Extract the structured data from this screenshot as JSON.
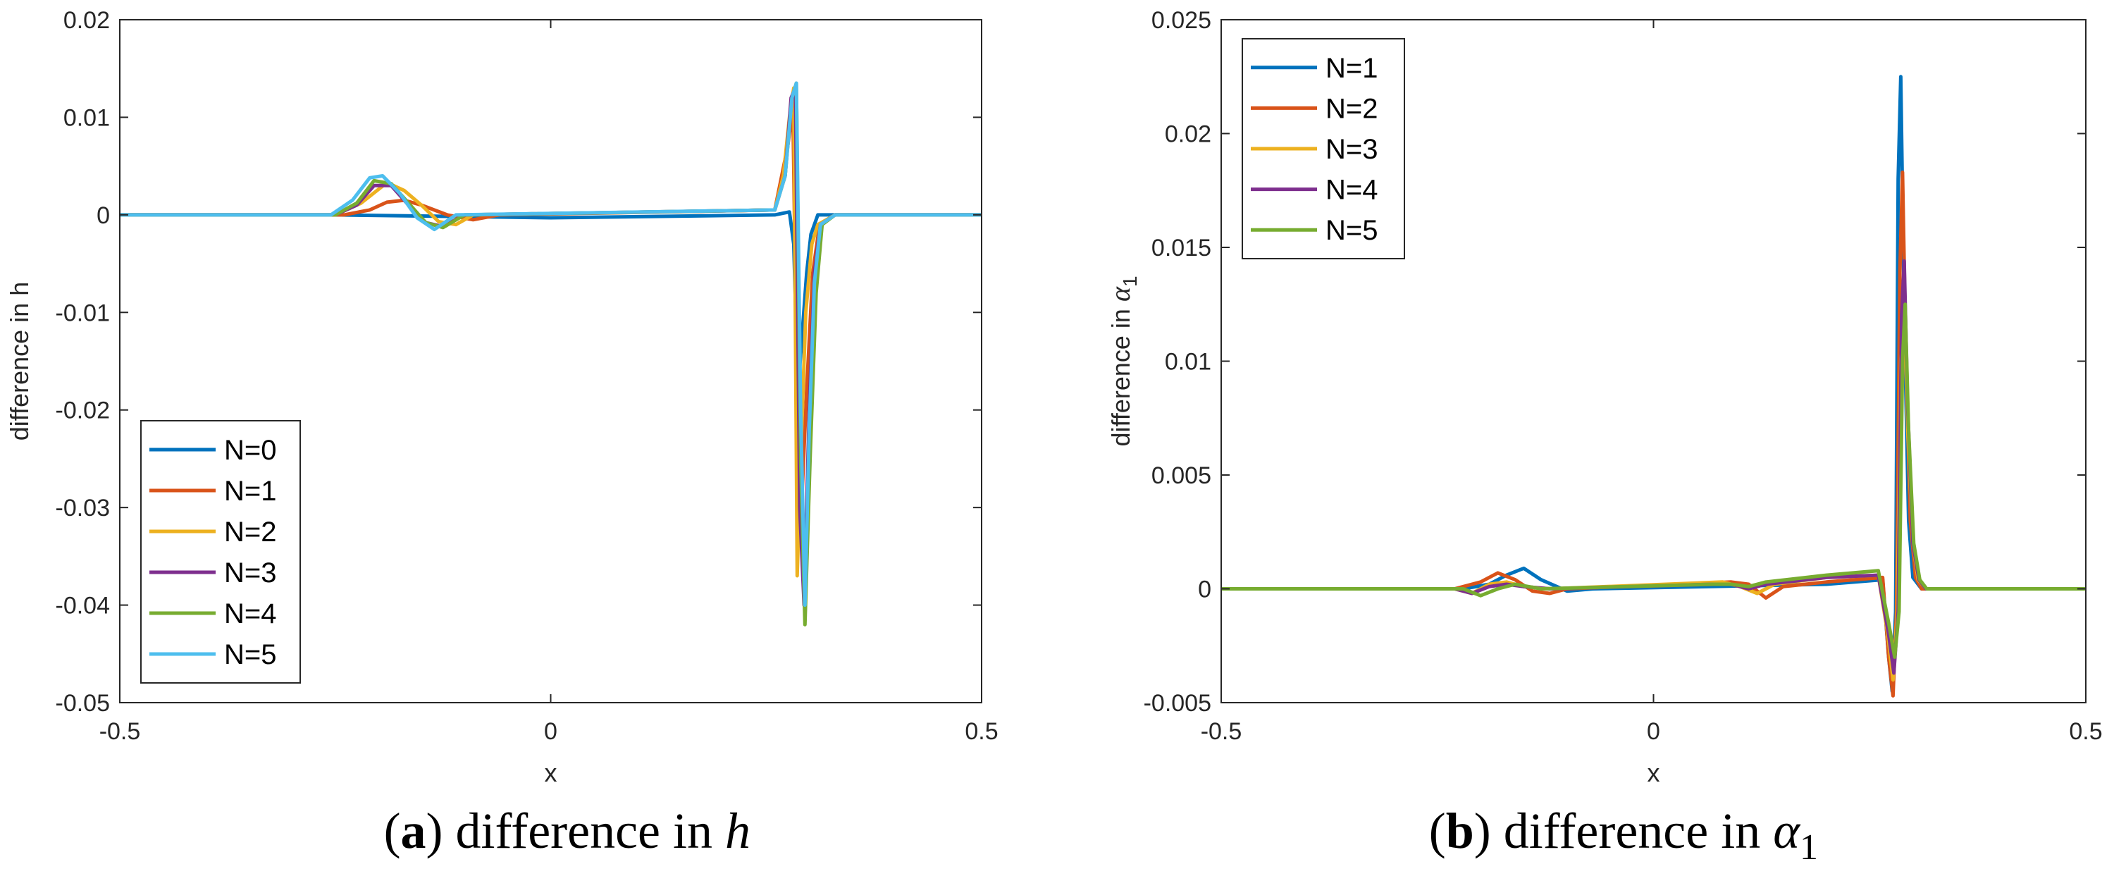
{
  "colors": {
    "N0": "#0072BD",
    "N1": "#D95319",
    "N2": "#EDB120",
    "N3": "#7E2F8E",
    "N4": "#77AC30",
    "N5": "#4DBEEE",
    "axis": "#262626"
  },
  "chart_data": [
    {
      "type": "line",
      "caption": {
        "letter": "a",
        "text": "difference in ",
        "symbol": "h"
      },
      "xlabel": "x",
      "ylabel": "difference in h",
      "xlim": [
        -0.5,
        0.5
      ],
      "ylim": [
        -0.05,
        0.02
      ],
      "xticks": [
        -0.5,
        0,
        0.5
      ],
      "xtick_labels": [
        "-0.5",
        "0",
        "0.5"
      ],
      "yticks": [
        -0.05,
        -0.04,
        -0.03,
        -0.02,
        -0.01,
        0,
        0.01,
        0.02
      ],
      "ytick_labels": [
        "-0.05",
        "-0.04",
        "-0.03",
        "-0.02",
        "-0.01",
        "0",
        "0.01",
        "0.02"
      ],
      "legend_position": "bottom-left",
      "series": [
        {
          "name": "N=0",
          "color_key": "N0",
          "x": [
            -0.5,
            -0.25,
            0.0,
            0.26,
            0.277,
            0.282,
            0.287,
            0.292,
            0.297,
            0.302,
            0.31,
            0.33,
            0.5
          ],
          "y": [
            0,
            0,
            -0.0003,
            0,
            0.0003,
            -0.003,
            -0.018,
            -0.012,
            -0.006,
            -0.002,
            0,
            0,
            0
          ]
        },
        {
          "name": "N=1",
          "color_key": "N1",
          "x": [
            -0.5,
            -0.24,
            -0.21,
            -0.19,
            -0.17,
            -0.15,
            -0.12,
            -0.09,
            -0.06,
            0.26,
            0.275,
            0.281,
            0.286,
            0.291,
            0.297,
            0.304,
            0.312,
            0.33,
            0.5
          ],
          "y": [
            0,
            0,
            0.0005,
            0.0013,
            0.0015,
            0.001,
            0,
            -0.0005,
            0,
            0.0005,
            0.007,
            0.011,
            -0.02,
            -0.03,
            -0.018,
            -0.006,
            -0.001,
            0,
            0
          ]
        },
        {
          "name": "N=2",
          "color_key": "N2",
          "x": [
            -0.5,
            -0.25,
            -0.22,
            -0.19,
            -0.17,
            -0.15,
            -0.13,
            -0.11,
            -0.09,
            0.26,
            0.27,
            0.277,
            0.282,
            0.286,
            0.29,
            0.296,
            0.303,
            0.31,
            0.33,
            0.5
          ],
          "y": [
            0,
            0,
            0.0012,
            0.0033,
            0.0025,
            0.001,
            -0.0007,
            -0.001,
            0,
            0.0005,
            0.004,
            0.01,
            0.013,
            -0.037,
            -0.025,
            -0.01,
            -0.003,
            -0.001,
            0,
            0
          ]
        },
        {
          "name": "N=3",
          "color_key": "N3",
          "x": [
            -0.5,
            -0.25,
            -0.225,
            -0.205,
            -0.185,
            -0.165,
            -0.145,
            -0.125,
            -0.1,
            0.26,
            0.272,
            0.279,
            0.284,
            0.289,
            0.294,
            0.3,
            0.306,
            0.313,
            0.33,
            0.5
          ],
          "y": [
            0,
            0,
            0.001,
            0.003,
            0.003,
            0.001,
            -0.0008,
            -0.0012,
            0,
            0.0005,
            0.004,
            0.012,
            0.013,
            -0.03,
            -0.04,
            -0.02,
            -0.006,
            -0.001,
            0,
            0
          ]
        },
        {
          "name": "N=4",
          "color_key": "N4",
          "x": [
            -0.5,
            -0.25,
            -0.225,
            -0.205,
            -0.185,
            -0.165,
            -0.145,
            -0.125,
            -0.1,
            0.26,
            0.272,
            0.28,
            0.285,
            0.29,
            0.295,
            0.301,
            0.308,
            0.315,
            0.33,
            0.5
          ],
          "y": [
            0,
            0,
            0.0012,
            0.0035,
            0.0032,
            0.0012,
            -0.0008,
            -0.0013,
            0,
            0.0005,
            0.004,
            0.012,
            0.0135,
            -0.025,
            -0.042,
            -0.025,
            -0.008,
            -0.001,
            0,
            0
          ]
        },
        {
          "name": "N=5",
          "color_key": "N5",
          "x": [
            -0.5,
            -0.255,
            -0.23,
            -0.21,
            -0.195,
            -0.175,
            -0.155,
            -0.135,
            -0.11,
            0.26,
            0.272,
            0.28,
            0.285,
            0.29,
            0.295,
            0.3,
            0.306,
            0.313,
            0.33,
            0.5
          ],
          "y": [
            0,
            0,
            0.0015,
            0.0038,
            0.004,
            0.0022,
            -0.0003,
            -0.0015,
            0,
            0.0005,
            0.004,
            0.012,
            0.0135,
            -0.02,
            -0.04,
            -0.022,
            -0.007,
            -0.001,
            0,
            0
          ]
        }
      ]
    },
    {
      "type": "line",
      "caption": {
        "letter": "b",
        "text": "difference in ",
        "symbol": "α",
        "subscript": "1"
      },
      "xlabel": "x",
      "ylabel": "difference in ",
      "ylabel_symbol": "α",
      "ylabel_subscript": "1",
      "xlim": [
        -0.5,
        0.5
      ],
      "ylim": [
        -0.005,
        0.025
      ],
      "xticks": [
        -0.5,
        0,
        0.5
      ],
      "xtick_labels": [
        "-0.5",
        "0",
        "0.5"
      ],
      "yticks": [
        -0.005,
        0,
        0.005,
        0.01,
        0.015,
        0.02,
        0.025
      ],
      "ytick_labels": [
        "-0.005",
        "0",
        "0.005",
        "0.01",
        "0.015",
        "0.02",
        "0.025"
      ],
      "legend_position": "top-left",
      "series": [
        {
          "name": "N=1",
          "color_key": "N0",
          "x": [
            -0.5,
            -0.22,
            -0.19,
            -0.17,
            -0.15,
            -0.13,
            -0.1,
            -0.07,
            0.2,
            0.265,
            0.272,
            0.276,
            0.28,
            0.283,
            0.286,
            0.29,
            0.295,
            0.3,
            0.31,
            0.5
          ],
          "y": [
            0,
            0,
            0.0002,
            0.0006,
            0.0009,
            0.0004,
            -0.0001,
            0,
            0.0002,
            0.0004,
            -0.003,
            -0.0045,
            -0.001,
            0.018,
            0.0225,
            0.012,
            0.003,
            0.0005,
            0,
            0
          ]
        },
        {
          "name": "N=2",
          "color_key": "N1",
          "x": [
            -0.5,
            -0.23,
            -0.2,
            -0.18,
            -0.16,
            -0.14,
            -0.12,
            -0.1,
            0.09,
            0.11,
            0.13,
            0.15,
            0.2,
            0.265,
            0.272,
            0.277,
            0.281,
            0.285,
            0.288,
            0.292,
            0.297,
            0.303,
            0.31,
            0.5
          ],
          "y": [
            0,
            0,
            0.0003,
            0.0007,
            0.0004,
            -0.0001,
            -0.0002,
            0,
            0.0003,
            0.0002,
            -0.0004,
            0.0001,
            0.0003,
            0.0005,
            -0.003,
            -0.0047,
            -0.001,
            0.014,
            0.0183,
            0.01,
            0.003,
            0.0005,
            0,
            0
          ]
        },
        {
          "name": "N=3",
          "color_key": "N2",
          "x": [
            -0.5,
            -0.23,
            -0.21,
            -0.19,
            -0.17,
            -0.15,
            -0.12,
            0.08,
            0.1,
            0.12,
            0.14,
            0.2,
            0.26,
            0.271,
            0.277,
            0.282,
            0.286,
            0.29,
            0.294,
            0.3,
            0.306,
            0.315,
            0.5
          ],
          "y": [
            0,
            0,
            -0.0002,
            0.0002,
            0.0003,
            0.0001,
            0,
            0.0003,
            0.0001,
            -0.0002,
            0.0002,
            0.0005,
            0.0006,
            -0.002,
            -0.004,
            -0.001,
            0.01,
            0.0125,
            0.007,
            0.002,
            0.0004,
            0,
            0
          ]
        },
        {
          "name": "N=4",
          "color_key": "N3",
          "x": [
            -0.5,
            -0.23,
            -0.21,
            -0.19,
            -0.17,
            -0.15,
            -0.12,
            0.07,
            0.09,
            0.11,
            0.13,
            0.2,
            0.26,
            0.272,
            0.278,
            0.283,
            0.287,
            0.29,
            0.294,
            0.3,
            0.307,
            0.315,
            0.5
          ],
          "y": [
            0,
            0,
            -0.0002,
            0.0001,
            0.0002,
            0.0001,
            0,
            0.0002,
            0.0002,
            0,
            0.0002,
            0.0005,
            0.0006,
            -0.002,
            -0.0037,
            -0.001,
            0.012,
            0.0144,
            0.008,
            0.002,
            0.0004,
            0,
            0
          ]
        },
        {
          "name": "N=5",
          "color_key": "N4",
          "x": [
            -0.5,
            -0.22,
            -0.2,
            -0.18,
            -0.16,
            -0.13,
            0.07,
            0.09,
            0.11,
            0.13,
            0.2,
            0.26,
            0.272,
            0.279,
            0.284,
            0.288,
            0.291,
            0.295,
            0.301,
            0.308,
            0.316,
            0.5
          ],
          "y": [
            0,
            0,
            -0.0003,
            0,
            0.0002,
            0,
            0.0002,
            0.0002,
            0.0001,
            0.0003,
            0.0006,
            0.0008,
            -0.0015,
            -0.003,
            -0.001,
            0.01,
            0.0125,
            0.007,
            0.002,
            0.0004,
            0,
            0
          ]
        }
      ]
    }
  ]
}
